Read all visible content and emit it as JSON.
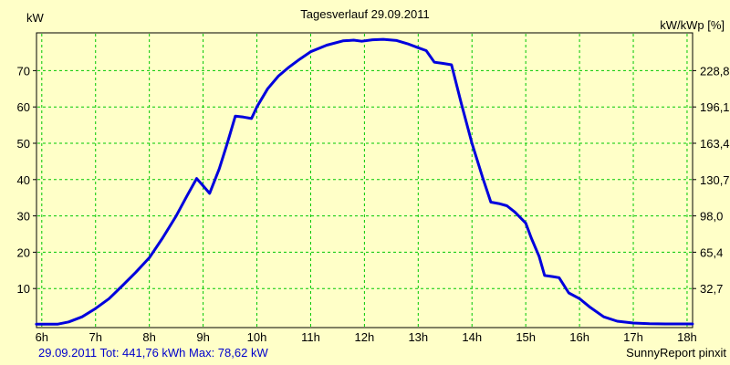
{
  "header": {
    "title": "Tagesverlauf 29.09.2011",
    "left_unit": "kW",
    "right_unit": "kW/kWp [%]"
  },
  "footer": {
    "summary": "29.09.2011 Tot: 441,76 kWh Max: 78,62 kW",
    "credit": "SunnyReport pinxit"
  },
  "chart_data": {
    "type": "line",
    "title": "Tagesverlauf 29.09.2011",
    "ylabel": "kW",
    "y2label": "kW/kWp [%]",
    "xlim": [
      6,
      18
    ],
    "ylim": [
      0,
      80
    ],
    "grid": true,
    "x_tick_hours": [
      6,
      7,
      8,
      9,
      10,
      11,
      12,
      13,
      14,
      15,
      16,
      17,
      18
    ],
    "x_tick_labels": [
      "6h",
      "7h",
      "8h",
      "9h",
      "10h",
      "11h",
      "12h",
      "13h",
      "14h",
      "15h",
      "16h",
      "17h",
      "18h"
    ],
    "y_tick_values": [
      10,
      20,
      30,
      40,
      50,
      60,
      70
    ],
    "y_tick_labels_left": [
      "10",
      "20",
      "30",
      "40",
      "50",
      "60",
      "70"
    ],
    "y_tick_labels_right": [
      "32,7",
      "65,4",
      "98,0",
      "130,7",
      "163,4",
      "196,1",
      "228,8"
    ],
    "summary": {
      "date": "29.09.2011",
      "total": "441,76 kWh",
      "max": "78,62 kW"
    },
    "colors": {
      "background": "#FFFFC8",
      "grid": "#00C800",
      "line": "#0000DD",
      "axis": "#000000",
      "summary_text": "#0000CC"
    },
    "series": [
      {
        "name": "kW",
        "points": [
          [
            5.9,
            0.2
          ],
          [
            6.3,
            0.2
          ],
          [
            6.5,
            0.8
          ],
          [
            6.75,
            2.2
          ],
          [
            7.0,
            4.5
          ],
          [
            7.25,
            7.2
          ],
          [
            7.5,
            10.8
          ],
          [
            7.75,
            14.5
          ],
          [
            8.0,
            18.5
          ],
          [
            8.25,
            24.0
          ],
          [
            8.5,
            30.0
          ],
          [
            8.7,
            35.5
          ],
          [
            8.88,
            40.3
          ],
          [
            9.0,
            38.3
          ],
          [
            9.12,
            36.2
          ],
          [
            9.3,
            43.0
          ],
          [
            9.45,
            50.0
          ],
          [
            9.6,
            57.5
          ],
          [
            9.75,
            57.2
          ],
          [
            9.9,
            56.8
          ],
          [
            10.0,
            60.0
          ],
          [
            10.2,
            65.0
          ],
          [
            10.4,
            68.5
          ],
          [
            10.6,
            71.0
          ],
          [
            10.8,
            73.2
          ],
          [
            11.0,
            75.2
          ],
          [
            11.3,
            77.0
          ],
          [
            11.6,
            78.2
          ],
          [
            11.8,
            78.4
          ],
          [
            11.95,
            78.1
          ],
          [
            12.15,
            78.5
          ],
          [
            12.35,
            78.62
          ],
          [
            12.6,
            78.3
          ],
          [
            12.8,
            77.4
          ],
          [
            13.0,
            76.3
          ],
          [
            13.15,
            75.5
          ],
          [
            13.3,
            72.3
          ],
          [
            13.45,
            72.0
          ],
          [
            13.62,
            71.6
          ],
          [
            13.8,
            61.0
          ],
          [
            14.0,
            50.0
          ],
          [
            14.2,
            40.5
          ],
          [
            14.35,
            33.8
          ],
          [
            14.5,
            33.4
          ],
          [
            14.65,
            32.8
          ],
          [
            14.8,
            31.0
          ],
          [
            15.0,
            28.0
          ],
          [
            15.1,
            24.0
          ],
          [
            15.25,
            18.8
          ],
          [
            15.35,
            13.6
          ],
          [
            15.5,
            13.3
          ],
          [
            15.62,
            13.0
          ],
          [
            15.8,
            8.8
          ],
          [
            16.0,
            7.2
          ],
          [
            16.2,
            4.8
          ],
          [
            16.45,
            2.2
          ],
          [
            16.7,
            1.0
          ],
          [
            17.0,
            0.5
          ],
          [
            17.3,
            0.3
          ],
          [
            17.6,
            0.25
          ],
          [
            18.1,
            0.25
          ]
        ]
      }
    ]
  }
}
